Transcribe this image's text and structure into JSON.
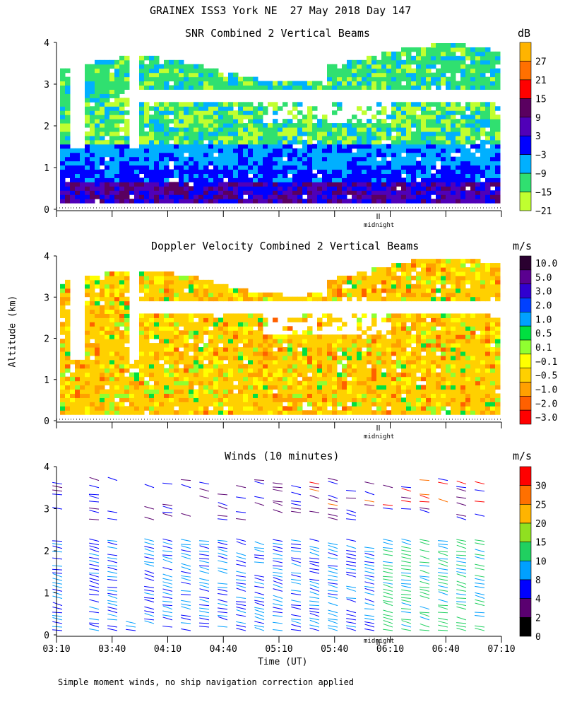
{
  "title": "GRAINEX ISS3 York NE  27 May 2018 Day 147",
  "ylabel": "Altitude (km)",
  "xlabel": "Time (UT)",
  "footnote": "Simple moment winds, no ship navigation correction applied",
  "midnight_label": "midnight",
  "x_ticks": [
    "03:10",
    "03:40",
    "04:10",
    "04:40",
    "05:10",
    "05:40",
    "06:10",
    "06:40",
    "07:10"
  ],
  "y_ticks": [
    "0",
    "1",
    "2",
    "3",
    "4"
  ],
  "chart_data": [
    {
      "type": "heatmap",
      "title": "SNR Combined 2 Vertical Beams",
      "unit": "dB",
      "ylim": [
        0,
        4
      ],
      "colorbar": {
        "labels": [
          "27",
          "21",
          "15",
          "9",
          "3",
          "−3",
          "−9",
          "−15",
          "−21"
        ],
        "colors": [
          "#ffb400",
          "#ff7000",
          "#ff0000",
          "#5a0060",
          "#5000b8",
          "#0000ff",
          "#00b0ff",
          "#30e070",
          "#c0ff30"
        ]
      }
    },
    {
      "type": "heatmap",
      "title": "Doppler Velocity Combined 2 Vertical Beams",
      "unit": "m/s",
      "ylim": [
        0,
        4
      ],
      "colorbar": {
        "labels": [
          "10.0",
          "5.0",
          "3.0",
          "2.0",
          "1.0",
          "0.5",
          "0.1",
          "−0.1",
          "−0.5",
          "−1.0",
          "−2.0",
          "−3.0"
        ],
        "colors": [
          "#2a0030",
          "#5a0090",
          "#3000d0",
          "#0040ff",
          "#00a0ff",
          "#00e040",
          "#90ff30",
          "#ffff00",
          "#ffd000",
          "#ffa000",
          "#ff6000",
          "#ff0000"
        ]
      }
    },
    {
      "type": "scatter",
      "title": "Winds (10 minutes)",
      "unit": "m/s",
      "ylim": [
        0,
        4
      ],
      "colorbar": {
        "labels": [
          "30",
          "25",
          "20",
          "15",
          "10",
          "8",
          "4",
          "2",
          "0"
        ],
        "colors": [
          "#ff0000",
          "#ff7000",
          "#ffb400",
          "#90e020",
          "#20d060",
          "#00a0ff",
          "#0000ff",
          "#5a0070",
          "#000000"
        ]
      }
    }
  ]
}
